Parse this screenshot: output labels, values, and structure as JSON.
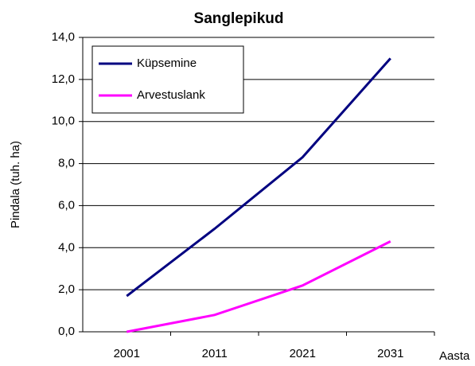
{
  "chart_data": {
    "type": "line",
    "title": "Sanglepikud",
    "x_label": "Aasta",
    "y_label": "Pindala (tuh. ha)",
    "categories": [
      "2001",
      "2011",
      "2021",
      "2031"
    ],
    "series": [
      {
        "name": "Küpsemine",
        "color": "#000080",
        "values": [
          1.7,
          4.9,
          8.3,
          13.0
        ]
      },
      {
        "name": "Arvestuslank",
        "color": "#ff00ff",
        "values": [
          0.0,
          0.8,
          2.2,
          4.3
        ]
      }
    ],
    "ylim": [
      0,
      14
    ],
    "yticks": [
      {
        "value": 0,
        "label": "0,0"
      },
      {
        "value": 2,
        "label": "2,0"
      },
      {
        "value": 4,
        "label": "4,0"
      },
      {
        "value": 6,
        "label": "6,0"
      },
      {
        "value": 8,
        "label": "8,0"
      },
      {
        "value": 10,
        "label": "10,0"
      },
      {
        "value": 12,
        "label": "12,0"
      },
      {
        "value": 14,
        "label": "14,0"
      }
    ],
    "grid": true,
    "legend": "top-left"
  }
}
